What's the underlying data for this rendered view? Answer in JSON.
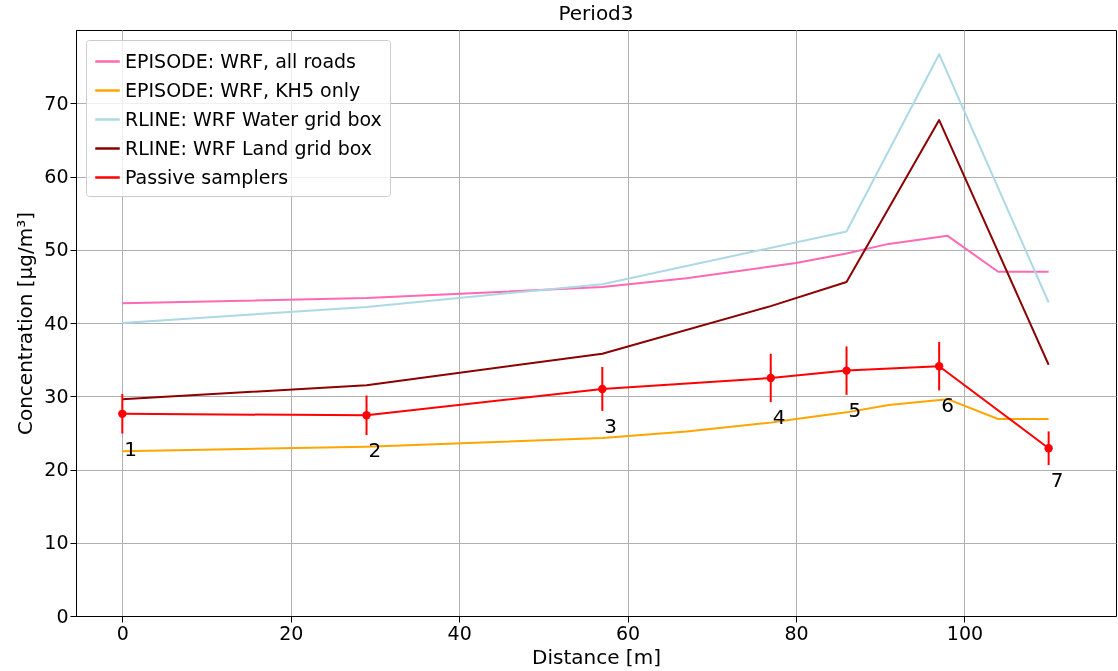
{
  "chart_data": {
    "type": "line",
    "title": "Period3",
    "xlabel": "Distance [m]",
    "ylabel": "Concentration [μg/m³]",
    "xlim": [
      -5.5,
      118
    ],
    "ylim": [
      0,
      80
    ],
    "xticks": [
      0,
      20,
      40,
      60,
      80,
      100
    ],
    "yticks": [
      0,
      10,
      20,
      30,
      40,
      50,
      60,
      70
    ],
    "grid": true,
    "legend": "top left",
    "marker": "none",
    "line_style": "solid",
    "series": [
      {
        "name": "EPISODE: WRF, all roads",
        "color": "#ff69b4",
        "x": [
          0,
          29,
          57,
          67,
          77,
          80,
          86,
          91,
          98,
          104,
          110
        ],
        "values": [
          42.7,
          43.4,
          44.9,
          46.1,
          47.7,
          48.2,
          49.5,
          50.8,
          51.9,
          47.0,
          47.0
        ]
      },
      {
        "name": "EPISODE: WRF, KH5 only",
        "color": "#ffa500",
        "x": [
          0,
          29,
          57,
          67,
          77,
          80,
          86,
          91,
          98,
          104,
          110
        ],
        "values": [
          22.5,
          23.1,
          24.3,
          25.2,
          26.4,
          26.9,
          27.8,
          28.8,
          29.6,
          26.9,
          26.9
        ]
      },
      {
        "name": "RLINE: WRF Water grid box",
        "color": "#add8e6",
        "x": [
          0,
          29,
          57,
          86,
          97,
          110
        ],
        "values": [
          40.0,
          42.2,
          45.3,
          52.5,
          76.7,
          42.8
        ]
      },
      {
        "name": "RLINE: WRF Land grid box",
        "color": "#8b0000",
        "x": [
          0,
          29,
          57,
          77,
          86,
          97,
          110
        ],
        "values": [
          29.6,
          31.5,
          35.8,
          42.3,
          45.6,
          67.7,
          34.3
        ]
      },
      {
        "name": "Passive samplers",
        "color": "#ff0000",
        "marker": "circle",
        "x": [
          0,
          29,
          57,
          77,
          86,
          97,
          110
        ],
        "values": [
          27.6,
          27.4,
          31.0,
          32.5,
          33.5,
          34.1,
          22.9
        ],
        "errors": [
          2.7,
          2.7,
          3.0,
          3.3,
          3.3,
          3.3,
          2.3
        ]
      }
    ],
    "annotations": [
      "1",
      "2",
      "3",
      "4",
      "5",
      "6",
      "7"
    ]
  }
}
